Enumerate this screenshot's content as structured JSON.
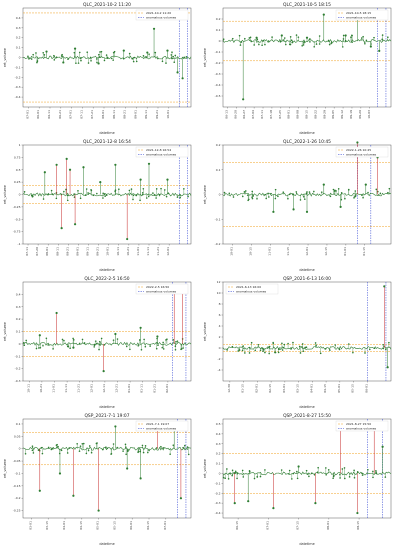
{
  "chart_data": [
    {
      "type": "line",
      "title": "QLC_2021-10-2 11:20",
      "xlabel": "datetime",
      "ylabel": "ret_volume",
      "ylim": [
        -0.5,
        0.5
      ],
      "yticks": [
        -0.4,
        -0.3,
        -0.2,
        -0.1,
        0.0,
        0.1,
        0.2,
        0.3,
        0.4
      ],
      "hlines": [
        0.45,
        -0.45
      ],
      "hline_label": "2021-10-2 11:20",
      "anom_label": "anomalous volumes",
      "x_tick_labels": [
        "07-01",
        "06-01",
        "06-11",
        "06-21",
        "07-01",
        "07-11",
        "07-21",
        "08-01",
        "08-11",
        "08-21",
        "09-01",
        "09-11",
        "09-21",
        "10-01"
      ],
      "spikes": [
        [
          0.14,
          0.06
        ],
        [
          0.24,
          -0.05
        ],
        [
          0.31,
          0.09
        ],
        [
          0.45,
          -0.06
        ],
        [
          0.6,
          0.07
        ],
        [
          0.74,
          0.05
        ],
        [
          0.78,
          0.29
        ],
        [
          0.86,
          0.07
        ],
        [
          0.92,
          -0.15
        ],
        [
          0.95,
          -0.21
        ]
      ],
      "anom_x": [
        0.97
      ],
      "vlines": [
        0.93,
        0.98
      ]
    },
    {
      "type": "line",
      "title": "QLC_2021-10-5 18:15",
      "xlabel": "datetime",
      "ylabel": "ret_volume",
      "ylim": [
        -0.6,
        0.3
      ],
      "yticks": [
        -0.5,
        -0.4,
        -0.3,
        -0.2,
        -0.1,
        0.0,
        0.1,
        0.2
      ],
      "hlines": [
        0.18,
        -0.18
      ],
      "hline_label": "2021-10-5 18:15",
      "anom_label": "anomalous volumes",
      "x_tick_labels": [
        "06-13",
        "06-20",
        "06-27",
        "07-04",
        "07-11",
        "07-18",
        "07-25",
        "08-01",
        "08-08",
        "08-15",
        "08-22",
        "08-29",
        "09-05",
        "09-12",
        "09-19",
        "09-26",
        "10-03"
      ],
      "spikes": [
        [
          0.12,
          -0.53
        ],
        [
          0.2,
          0.03
        ],
        [
          0.35,
          0.05
        ],
        [
          0.5,
          0.03
        ],
        [
          0.6,
          0.24
        ],
        [
          0.73,
          0.05
        ],
        [
          0.8,
          0.25
        ],
        [
          0.88,
          -0.05
        ],
        [
          0.93,
          -0.09
        ]
      ],
      "anom_x": [
        0.97
      ],
      "vlines": [
        0.92,
        0.97
      ]
    },
    {
      "type": "line",
      "title": "QLC_2021-12-8 16:54",
      "xlabel": "datetime",
      "ylabel": "ret_volume",
      "ylim": [
        -1.0,
        1.0
      ],
      "yticks": [
        -1.0,
        -0.75,
        -0.5,
        -0.25,
        0.0,
        0.25,
        0.5,
        0.75,
        1.0
      ],
      "hlines": [
        0.18,
        -0.18
      ],
      "hline_label": "2021-12-8 16:54",
      "anom_label": "anomalous volumes",
      "x_tick_labels": [
        "07-11",
        "07-20",
        "08-01",
        "08-11",
        "08-21",
        "09-01",
        "09-11",
        "09-21",
        "10-01",
        "10-11",
        "10-21",
        "11-01",
        "11-11",
        "11-21",
        "12-01"
      ],
      "spikes": [
        [
          0.13,
          0.45
        ],
        [
          0.2,
          0.6
        ],
        [
          0.23,
          -0.68
        ],
        [
          0.26,
          0.72
        ],
        [
          0.28,
          0.5
        ],
        [
          0.31,
          -0.6
        ],
        [
          0.36,
          0.55
        ],
        [
          0.46,
          0.25
        ],
        [
          0.55,
          0.6
        ],
        [
          0.62,
          -0.9
        ],
        [
          0.7,
          0.3
        ],
        [
          0.75,
          0.62
        ],
        [
          0.86,
          0.3
        ]
      ],
      "anom_x": [
        0.2,
        0.23,
        0.26,
        0.28,
        0.31,
        0.62
      ],
      "vlines": [
        0.93,
        0.98
      ]
    },
    {
      "type": "line",
      "title": "QLC_2022-1-26 10:45",
      "xlabel": "datetime",
      "ylabel": "ret_volume",
      "ylim": [
        -0.2,
        0.2
      ],
      "yticks": [
        -0.2,
        -0.1,
        0.0,
        0.1,
        0.2
      ],
      "hlines": [
        0.13,
        -0.13
      ],
      "hline_label": "2022-1-26 10:45",
      "anom_label": "anomalous volumes",
      "x_tick_labels": [
        "10-01",
        "10-15",
        "11-01",
        "11-15",
        "12-01",
        "12-15",
        "01-01",
        "01-15"
      ],
      "spikes": [
        [
          0.3,
          -0.07
        ],
        [
          0.42,
          -0.06
        ],
        [
          0.5,
          -0.07
        ],
        [
          0.6,
          0.04
        ],
        [
          0.7,
          -0.05
        ],
        [
          0.8,
          0.21
        ],
        [
          0.85,
          0.04
        ],
        [
          0.92,
          0.15
        ]
      ],
      "anom_x": [
        0.8,
        0.92
      ],
      "vlines": [
        0.8,
        0.88
      ]
    },
    {
      "type": "line",
      "title": "QLC_2022-2-5 16:50",
      "xlabel": "datetime",
      "ylabel": "ret_volume",
      "ylim": [
        -0.3,
        0.5
      ],
      "yticks": [
        -0.3,
        -0.2,
        -0.1,
        0.0,
        0.1,
        0.2,
        0.3,
        0.4
      ],
      "hlines": [
        0.1,
        -0.1
      ],
      "hline_label": "2022-2-5 16:50",
      "anom_label": "anomalous volumes",
      "x_tick_labels": [
        "10-11",
        "10-21",
        "11-01",
        "11-11",
        "11-21",
        "12-01",
        "12-11",
        "12-21",
        "01-01",
        "01-11",
        "01-21",
        "02-01"
      ],
      "spikes": [
        [
          0.1,
          0.07
        ],
        [
          0.2,
          0.25
        ],
        [
          0.3,
          -0.03
        ],
        [
          0.48,
          -0.22
        ],
        [
          0.55,
          0.08
        ],
        [
          0.7,
          0.13
        ],
        [
          0.8,
          0.06
        ],
        [
          0.9,
          0.45
        ],
        [
          0.95,
          0.45
        ]
      ],
      "anom_x": [
        0.2,
        0.48,
        0.9,
        0.95
      ],
      "vlines": [
        0.89,
        0.97
      ]
    },
    {
      "type": "line",
      "title": "QSP_2021-6-13 16:00",
      "xlabel": "datetime",
      "ylabel": "ret_volume",
      "ylim": [
        -6,
        12
      ],
      "yticks": [
        -4,
        -2,
        0,
        2,
        4,
        6,
        8,
        10,
        12
      ],
      "hlines": [
        0.6,
        -0.6
      ],
      "hline_label": "2021-6-13 16:00",
      "anom_label": "anomalous volumes",
      "x_tick_labels": [
        "12-30",
        "01-15",
        "02-01",
        "02-15",
        "03-01",
        "03-15",
        "04-01",
        "04-15",
        "05-01",
        "05-15",
        "06-01"
      ],
      "spikes": [
        [
          0.96,
          11.2
        ],
        [
          0.98,
          -3.5
        ]
      ],
      "anom_x": [
        0.96
      ],
      "vlines": [
        0.86,
        0.97
      ]
    },
    {
      "type": "line",
      "title": "QSP_2021-7-1 19:07",
      "xlabel": "datetime",
      "ylabel": "ret_volume",
      "ylim": [
        -0.28,
        0.12
      ],
      "yticks": [
        -0.25,
        -0.2,
        -0.15,
        -0.1,
        -0.05,
        0.0,
        0.05,
        0.1
      ],
      "hlines": [
        0.065,
        -0.065
      ],
      "hline_label": "2021-7-1 19:07",
      "anom_label": "anomalous volumes",
      "x_tick_labels": [
        "03-01",
        "03-15",
        "04-01",
        "04-15",
        "05-01",
        "05-15",
        "06-01",
        "06-15",
        "07-01"
      ],
      "spikes": [
        [
          0.1,
          -0.17
        ],
        [
          0.22,
          -0.1
        ],
        [
          0.3,
          -0.19
        ],
        [
          0.45,
          -0.25
        ],
        [
          0.55,
          0.09
        ],
        [
          0.62,
          -0.08
        ],
        [
          0.7,
          -0.12
        ],
        [
          0.8,
          0.1
        ],
        [
          0.9,
          0.09
        ],
        [
          0.94,
          -0.2
        ]
      ],
      "anom_x": [
        0.1,
        0.3,
        0.45,
        0.8,
        0.94
      ],
      "vlines": [
        0.92,
        0.97
      ]
    },
    {
      "type": "line",
      "title": "QSP_2021-8-27 15:50",
      "xlabel": "datetime",
      "ylabel": "ret_volume",
      "ylim": [
        -0.45,
        0.55
      ],
      "yticks": [
        -0.4,
        -0.3,
        -0.2,
        -0.1,
        0.0,
        0.1,
        0.2,
        0.3,
        0.4,
        0.5
      ],
      "hlines": [
        0.2,
        -0.2
      ],
      "hline_label": "2021-8-27 15:50",
      "anom_label": "anomalous volumes",
      "x_tick_labels": [
        "06-15",
        "07-01",
        "07-15",
        "08-01",
        "08-15"
      ],
      "spikes": [
        [
          0.07,
          -0.3
        ],
        [
          0.15,
          -0.28
        ],
        [
          0.3,
          -0.35
        ],
        [
          0.45,
          0.07
        ],
        [
          0.55,
          -0.3
        ],
        [
          0.7,
          0.5
        ],
        [
          0.8,
          -0.4
        ],
        [
          0.9,
          0.5
        ],
        [
          0.95,
          0.27
        ]
      ],
      "anom_x": [
        0.07,
        0.3,
        0.55,
        0.7,
        0.8,
        0.9
      ],
      "vlines": [
        0.86,
        0.95
      ]
    }
  ]
}
